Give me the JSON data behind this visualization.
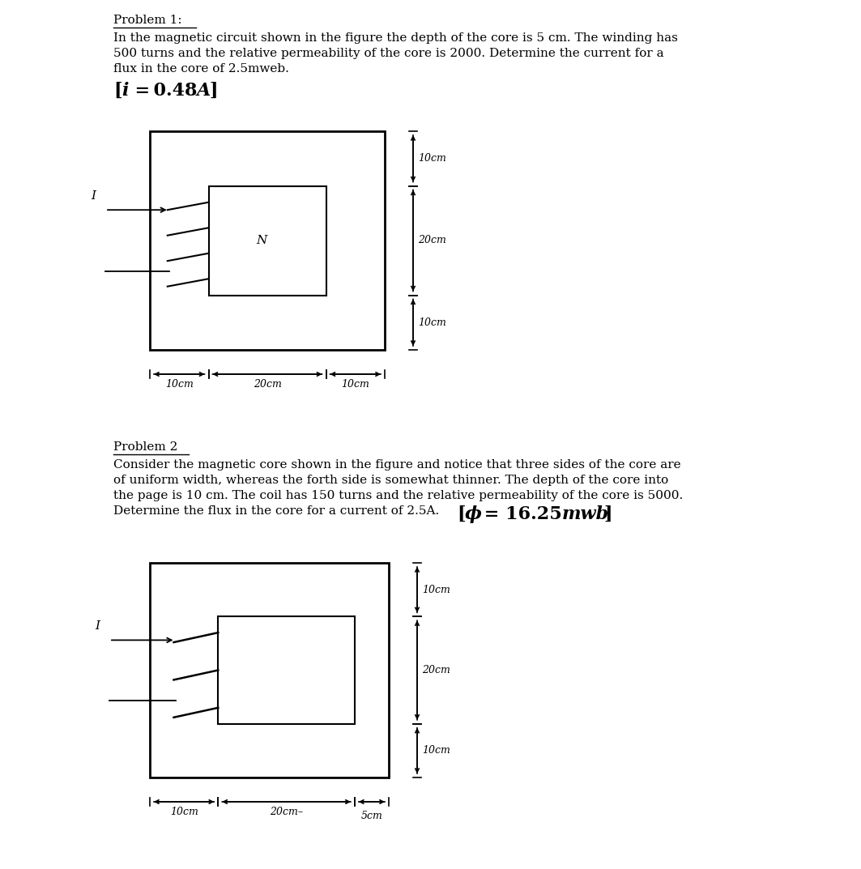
{
  "bg_color": "#ffffff",
  "fig_width": 10.63,
  "fig_height": 10.73,
  "p1_title": "Problem 1:",
  "p1_body1": "In the magnetic circuit shown in the figure the depth of the core is 5 cm. The winding has",
  "p1_body2": "500 turns and the relative permeability of the core is 2000. Determine the current for a",
  "p1_body3": "flux in the core of 2.5mweb.",
  "p1_answer_bracket": "[",
  "p1_answer_i": "i",
  "p1_answer_eq": " = 0.48",
  "p1_answer_A": "A",
  "p1_answer_close": "]",
  "p2_title": "Problem 2",
  "p2_body1": "Consider the magnetic core shown in the figure and notice that three sides of the core are",
  "p2_body2": "of uniform width, whereas the forth side is somewhat thinner. The depth of the core into",
  "p2_body3": "the page is 10 cm. The coil has 150 turns and the relative permeability of the core is 5000.",
  "p2_body4": "Determine the flux in the core for a current of 2.5A.",
  "p2_answer": "[ϕ = 16.25mwb]",
  "text_fontsize": 11,
  "answer_fontsize": 15,
  "dim_fontsize": 9,
  "label_fontsize": 11
}
